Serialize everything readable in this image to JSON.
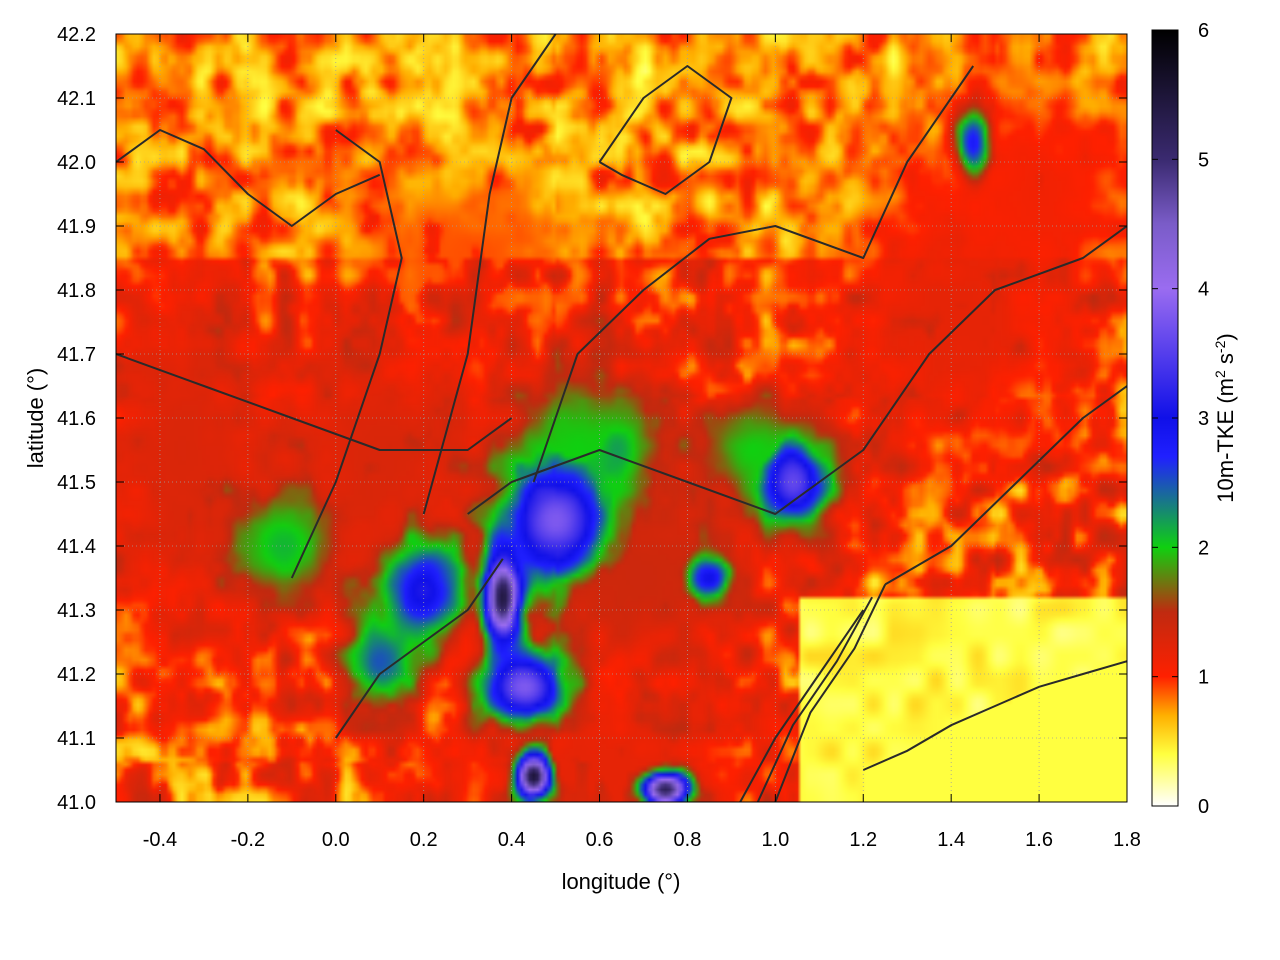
{
  "chart_data": {
    "type": "heatmap",
    "title": "",
    "xlabel": "longitude (°)",
    "ylabel": "latitude (°)",
    "colorbar": {
      "label_main": "10m-TKE (m",
      "label_sup1": "2",
      "label_mid": " s",
      "label_sup2": "-2",
      "label_end": ")",
      "range": [
        0,
        6
      ],
      "ticks": [
        "0",
        "1",
        "2",
        "3",
        "4",
        "5",
        "6"
      ],
      "stops": [
        {
          "v": 0.0,
          "c": "#ffffff"
        },
        {
          "v": 0.4,
          "c": "#ffff40"
        },
        {
          "v": 0.7,
          "c": "#ffb000"
        },
        {
          "v": 1.0,
          "c": "#ff2000"
        },
        {
          "v": 1.5,
          "c": "#c02a10"
        },
        {
          "v": 2.0,
          "c": "#10d010"
        },
        {
          "v": 2.7,
          "c": "#2020ff"
        },
        {
          "v": 3.0,
          "c": "#1010e8"
        },
        {
          "v": 4.0,
          "c": "#9a6cf0"
        },
        {
          "v": 4.5,
          "c": "#7a5cc8"
        },
        {
          "v": 5.0,
          "c": "#3a2a70"
        },
        {
          "v": 6.0,
          "c": "#000000"
        }
      ]
    },
    "xlim": [
      -0.5,
      1.8
    ],
    "ylim": [
      41.0,
      42.2
    ],
    "x_ticks": [
      "-0.4",
      "-0.2",
      "0.0",
      "0.2",
      "0.4",
      "0.6",
      "0.8",
      "1.0",
      "1.2",
      "1.4",
      "1.6",
      "1.8"
    ],
    "y_ticks": [
      "41.0",
      "41.1",
      "41.2",
      "41.3",
      "41.4",
      "41.5",
      "41.6",
      "41.7",
      "41.8",
      "41.9",
      "42.0",
      "42.1",
      "42.2"
    ],
    "grid": true,
    "legend": "none",
    "features": [
      {
        "lon": 0.38,
        "lat": 41.32,
        "val": 5.4,
        "sx": 0.03,
        "sy": 0.05
      },
      {
        "lon": 0.45,
        "lat": 41.04,
        "val": 5.5,
        "sx": 0.03,
        "sy": 0.025
      },
      {
        "lon": 0.75,
        "lat": 41.02,
        "val": 5.2,
        "sx": 0.04,
        "sy": 0.02
      },
      {
        "lon": 0.5,
        "lat": 41.44,
        "val": 3.8,
        "sx": 0.09,
        "sy": 0.07
      },
      {
        "lon": 0.43,
        "lat": 41.18,
        "val": 3.8,
        "sx": 0.07,
        "sy": 0.04
      },
      {
        "lon": 0.2,
        "lat": 41.33,
        "val": 3.1,
        "sx": 0.07,
        "sy": 0.06
      },
      {
        "lon": 0.1,
        "lat": 41.22,
        "val": 2.5,
        "sx": 0.06,
        "sy": 0.05
      },
      {
        "lon": 1.04,
        "lat": 41.5,
        "val": 3.6,
        "sx": 0.06,
        "sy": 0.05
      },
      {
        "lon": 0.85,
        "lat": 41.35,
        "val": 3.0,
        "sx": 0.04,
        "sy": 0.025
      },
      {
        "lon": 1.45,
        "lat": 42.03,
        "val": 2.8,
        "sx": 0.03,
        "sy": 0.04
      },
      {
        "lon": 0.64,
        "lat": 41.55,
        "val": 2.2,
        "sx": 0.05,
        "sy": 0.05
      },
      {
        "lon": -0.12,
        "lat": 41.4,
        "val": 2.1,
        "sx": 0.1,
        "sy": 0.07
      },
      {
        "lon": 0.95,
        "lat": 41.55,
        "val": 2.0,
        "sx": 0.1,
        "sy": 0.06
      },
      {
        "lon": 0.55,
        "lat": 41.55,
        "val": 2.0,
        "sx": 0.12,
        "sy": 0.1
      },
      {
        "lon": -0.35,
        "lat": 41.55,
        "val": 1.3,
        "sx": 0.15,
        "sy": 0.2
      },
      {
        "lon": 0.1,
        "lat": 41.55,
        "val": 1.3,
        "sx": 0.2,
        "sy": 0.15
      },
      {
        "lon": 0.7,
        "lat": 41.35,
        "val": 1.4,
        "sx": 0.2,
        "sy": 0.12
      },
      {
        "lon": 1.4,
        "lat": 41.75,
        "val": 1.2,
        "sx": 0.2,
        "sy": 0.15
      },
      {
        "lon": 1.6,
        "lat": 41.95,
        "val": 1.1,
        "sx": 0.15,
        "sy": 0.12
      },
      {
        "lon": 0.3,
        "lat": 41.85,
        "val": 0.9,
        "sx": 0.2,
        "sy": 0.1
      },
      {
        "lon": 0.6,
        "lat": 41.05,
        "val": 1.2,
        "sx": 0.25,
        "sy": 0.08
      }
    ],
    "sea": {
      "val": 0.4,
      "coast": [
        [
          1.2,
          41.05
        ],
        [
          1.3,
          41.08
        ],
        [
          1.4,
          41.12
        ],
        [
          1.5,
          41.15
        ],
        [
          1.6,
          41.18
        ],
        [
          1.7,
          41.2
        ],
        [
          1.8,
          41.22
        ]
      ]
    },
    "contours": [
      {
        "pts": [
          [
            -0.5,
            42.0
          ],
          [
            -0.4,
            42.05
          ],
          [
            -0.3,
            42.02
          ],
          [
            -0.2,
            41.95
          ],
          [
            -0.1,
            41.9
          ],
          [
            0.0,
            41.95
          ],
          [
            0.1,
            41.98
          ]
        ]
      },
      {
        "pts": [
          [
            -0.1,
            41.35
          ],
          [
            0.0,
            41.5
          ],
          [
            0.1,
            41.7
          ],
          [
            0.15,
            41.85
          ],
          [
            0.1,
            42.0
          ],
          [
            0.0,
            42.05
          ]
        ]
      },
      {
        "pts": [
          [
            0.2,
            41.45
          ],
          [
            0.3,
            41.7
          ],
          [
            0.35,
            41.95
          ],
          [
            0.4,
            42.1
          ],
          [
            0.5,
            42.2
          ]
        ]
      },
      {
        "pts": [
          [
            0.45,
            41.5
          ],
          [
            0.55,
            41.7
          ],
          [
            0.7,
            41.8
          ],
          [
            0.85,
            41.88
          ],
          [
            1.0,
            41.9
          ],
          [
            1.2,
            41.85
          ],
          [
            1.3,
            42.0
          ],
          [
            1.45,
            42.15
          ]
        ]
      },
      {
        "pts": [
          [
            0.3,
            41.45
          ],
          [
            0.4,
            41.5
          ],
          [
            0.6,
            41.55
          ],
          [
            0.8,
            41.5
          ],
          [
            1.0,
            41.45
          ],
          [
            1.2,
            41.55
          ],
          [
            1.35,
            41.7
          ],
          [
            1.5,
            41.8
          ],
          [
            1.7,
            41.85
          ],
          [
            1.8,
            41.9
          ]
        ]
      },
      {
        "pts": [
          [
            1.2,
            41.3
          ],
          [
            1.1,
            41.2
          ],
          [
            1.0,
            41.1
          ],
          [
            0.92,
            41.0
          ]
        ]
      },
      {
        "pts": [
          [
            1.22,
            41.32
          ],
          [
            1.14,
            41.22
          ],
          [
            1.04,
            41.12
          ],
          [
            0.96,
            41.0
          ]
        ]
      },
      {
        "pts": [
          [
            1.25,
            41.34
          ],
          [
            1.18,
            41.24
          ],
          [
            1.08,
            41.14
          ],
          [
            1.0,
            41.0
          ]
        ]
      },
      {
        "pts": [
          [
            1.25,
            41.34
          ],
          [
            1.4,
            41.4
          ],
          [
            1.55,
            41.5
          ],
          [
            1.7,
            41.6
          ],
          [
            1.8,
            41.65
          ]
        ]
      },
      {
        "pts": [
          [
            0.0,
            41.1
          ],
          [
            0.1,
            41.2
          ],
          [
            0.2,
            41.25
          ],
          [
            0.3,
            41.3
          ],
          [
            0.38,
            41.38
          ]
        ]
      },
      {
        "pts": [
          [
            0.6,
            42.0
          ],
          [
            0.7,
            42.1
          ],
          [
            0.8,
            42.15
          ],
          [
            0.9,
            42.1
          ],
          [
            0.85,
            42.0
          ],
          [
            0.75,
            41.95
          ],
          [
            0.65,
            41.98
          ],
          [
            0.6,
            42.0
          ]
        ]
      },
      {
        "pts": [
          [
            -0.5,
            41.7
          ],
          [
            -0.3,
            41.65
          ],
          [
            -0.1,
            41.6
          ],
          [
            0.1,
            41.55
          ],
          [
            0.3,
            41.55
          ],
          [
            0.4,
            41.6
          ]
        ]
      }
    ]
  }
}
